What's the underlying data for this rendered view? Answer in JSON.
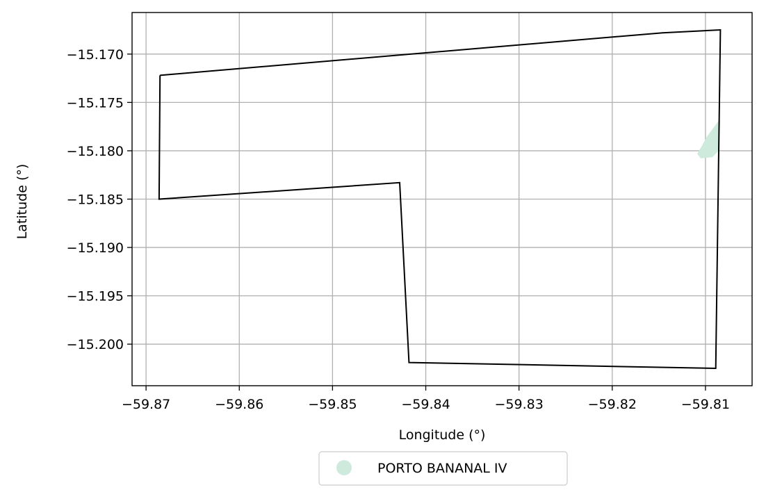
{
  "chart_data": {
    "type": "map",
    "xlabel": "Longitude (°)",
    "ylabel": "Latitude (°)",
    "xlim": [
      -59.8715,
      -59.805
    ],
    "ylim": [
      -15.2043,
      -15.1657
    ],
    "grid": true,
    "x_ticks": [
      -59.87,
      -59.86,
      -59.85,
      -59.84,
      -59.83,
      -59.82,
      -59.81
    ],
    "x_tick_labels": [
      "−59.87",
      "−59.86",
      "−59.85",
      "−59.84",
      "−59.83",
      "−59.82",
      "−59.81"
    ],
    "y_ticks": [
      -15.17,
      -15.175,
      -15.18,
      -15.185,
      -15.19,
      -15.195,
      -15.2
    ],
    "y_tick_labels": [
      "−15.170",
      "−15.175",
      "−15.180",
      "−15.185",
      "−15.190",
      "−15.195",
      "−15.200"
    ],
    "boundary_polygon": {
      "color": "#000000",
      "points": [
        [
          -59.8685,
          -15.1722
        ],
        [
          -59.8146,
          -15.1678
        ],
        [
          -59.8084,
          -15.1675
        ],
        [
          -59.8089,
          -15.2025
        ],
        [
          -59.8418,
          -15.2019
        ],
        [
          -59.8428,
          -15.1833
        ],
        [
          -59.8686,
          -15.185
        ],
        [
          -59.8685,
          -15.1722
        ]
      ]
    },
    "feature_polygon": {
      "color": "#cdeadd",
      "points": [
        [
          -59.8085,
          -15.1769
        ],
        [
          -59.8087,
          -15.18
        ],
        [
          -59.8093,
          -15.1806
        ],
        [
          -59.8105,
          -15.1807
        ],
        [
          -59.8108,
          -15.1803
        ],
        [
          -59.8103,
          -15.1795
        ],
        [
          -59.8098,
          -15.1786
        ]
      ]
    },
    "legend": {
      "placement": "bottom-center",
      "entries": [
        {
          "label": "PORTO BANANAL IV",
          "color": "#cdeadd",
          "marker": "circle"
        }
      ]
    }
  }
}
